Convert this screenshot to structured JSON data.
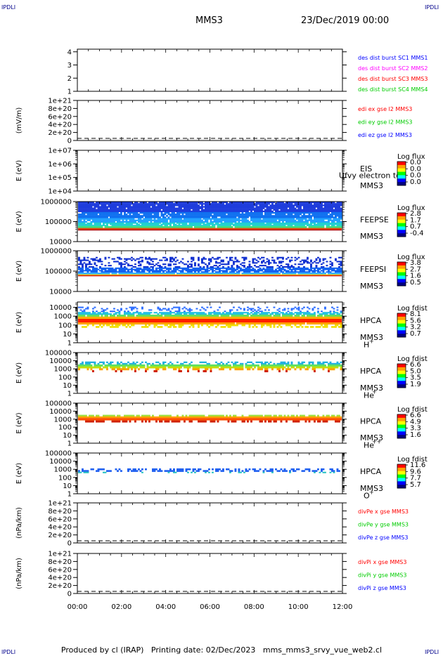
{
  "header": {
    "corner_label": "IPDLI",
    "title": "MMS3",
    "date": "23/Dec/2019 00:00"
  },
  "footer": {
    "text": "Produced by cl (IRAP)   Printing date: 02/Dec/2023   mms_mms3_srvy_vue_web2.cl"
  },
  "colors": {
    "blue": "#0000ff",
    "magenta": "#ff00ff",
    "red": "#ff0000",
    "green": "#00cc00",
    "darkblue": "#00008b"
  },
  "x_axis": {
    "range_hours": [
      0,
      12
    ],
    "ticks": [
      "00:00",
      "02:00",
      "04:00",
      "06:00",
      "08:00",
      "10:00",
      "12:00"
    ]
  },
  "chart_data": [
    {
      "type": "line",
      "ylabel": "",
      "yticks": [
        "1",
        "2",
        "3",
        "4"
      ],
      "ylim": [
        1,
        4.2
      ],
      "legend": [
        {
          "label": "des dist burst SC1 MMS1",
          "color": "#0000ff"
        },
        {
          "label": "des dist burst SC2 MMS2",
          "color": "#ff00ff"
        },
        {
          "label": "des dist burst SC3 MMS3",
          "color": "#ff0000"
        },
        {
          "label": "des dist burst SC4 MMS4",
          "color": "#00cc00"
        }
      ],
      "series": []
    },
    {
      "type": "line",
      "ylabel": "(mV/m)",
      "yticks": [
        "0",
        "2e+20",
        "4e+20",
        "6e+20",
        "8e+20",
        "1e+21"
      ],
      "ylim": [
        0,
        1e+21
      ],
      "zero_line": true,
      "legend": [
        {
          "label": "edi ex gse l2 MMS3",
          "color": "#ff0000"
        },
        {
          "label": "edi ey gse l2 MMS3",
          "color": "#00cc00"
        },
        {
          "label": "edi ez gse l2 MMS3",
          "color": "#0000ff"
        }
      ],
      "series": []
    },
    {
      "type": "heatmap",
      "ylabel": "E (eV)",
      "yticks": [
        "1e+04",
        "1e+05",
        "1e+06",
        "1e+07"
      ],
      "log": true,
      "ylim": [
        10000,
        10000000
      ],
      "instrument": [
        "EIS",
        "MMS3"
      ],
      "note": "Ufvy electron to",
      "colorbar": {
        "title": "Log flux",
        "ticks": [
          "0.0",
          "0.0",
          "0.0",
          "0.0"
        ]
      },
      "bands": []
    },
    {
      "type": "heatmap",
      "ylabel": "E (eV)",
      "yticks": [
        "10000",
        "100000",
        "1000000"
      ],
      "log": true,
      "ylim": [
        10000,
        1000000
      ],
      "instrument": [
        "FEEPSE",
        "MMS3"
      ],
      "colorbar": {
        "title": "Log flux",
        "ticks": [
          "2.8",
          "1.7",
          "0.7",
          "-0.4"
        ]
      },
      "bands": [
        {
          "e_lo": 300000,
          "e_hi": 1000000,
          "color": "#1e3cdc",
          "speckle": 0.05
        },
        {
          "e_lo": 150000,
          "e_hi": 300000,
          "color": "#1070f0",
          "speckle": 0.08
        },
        {
          "e_lo": 90000,
          "e_hi": 150000,
          "color": "#20a0ff",
          "speckle": 0.1
        },
        {
          "e_lo": 60000,
          "e_hi": 90000,
          "color": "#20d0d0",
          "speckle": 0.1
        },
        {
          "e_lo": 48000,
          "e_hi": 60000,
          "color": "#40e080",
          "speckle": 0.05
        },
        {
          "e_lo": 40000,
          "e_hi": 48000,
          "color": "#e04000",
          "speckle": 0
        },
        {
          "e_lo": 36000,
          "e_hi": 40000,
          "color": "#b00000",
          "speckle": 0
        }
      ]
    },
    {
      "type": "heatmap",
      "ylabel": "E (eV)",
      "yticks": [
        "10000",
        "100000",
        "1000000"
      ],
      "log": true,
      "ylim": [
        10000,
        1000000
      ],
      "instrument": [
        "FEEPSI",
        "MMS3"
      ],
      "colorbar": {
        "title": "Log flux",
        "ticks": [
          "3.8",
          "2.7",
          "1.6",
          "0.5"
        ]
      },
      "bands": [
        {
          "e_lo": 150000,
          "e_hi": 500000,
          "color": "#1030d0",
          "speckle": 0.65
        },
        {
          "e_lo": 85000,
          "e_hi": 150000,
          "color": "#1060f0",
          "speckle": 0.2
        },
        {
          "e_lo": 70000,
          "e_hi": 85000,
          "color": "#30b0ff",
          "speckle": 0.05
        },
        {
          "e_lo": 63000,
          "e_hi": 70000,
          "color": "#f0d000",
          "speckle": 0
        },
        {
          "e_lo": 56000,
          "e_hi": 63000,
          "color": "#d01000",
          "speckle": 0
        }
      ]
    },
    {
      "type": "heatmap",
      "ylabel": "E (eV)",
      "yticks": [
        "1",
        "10",
        "100",
        "1000",
        "10000"
      ],
      "log": true,
      "ylim": [
        1,
        40000
      ],
      "instrument": [
        "HPCA",
        "MMS3",
        "H",
        "+"
      ],
      "colorbar": {
        "title": "Log fdist",
        "ticks": [
          "8.1",
          "5.6",
          "3.2",
          "0.7"
        ]
      },
      "bands": [
        {
          "e_lo": 3000,
          "e_hi": 12000,
          "color": "#3070ff",
          "speckle": 0.75
        },
        {
          "e_lo": 1500,
          "e_hi": 3000,
          "color": "#20c0e0",
          "speckle": 0.2
        },
        {
          "e_lo": 900,
          "e_hi": 1500,
          "color": "#60e060",
          "speckle": 0.1
        },
        {
          "e_lo": 500,
          "e_hi": 900,
          "color": "#ffb000",
          "speckle": 0
        },
        {
          "e_lo": 200,
          "e_hi": 500,
          "color": "#ff2000",
          "speckle": 0
        },
        {
          "e_lo": 120,
          "e_hi": 200,
          "color": "#ffa000",
          "speckle": 0.05
        },
        {
          "e_lo": 50,
          "e_hi": 120,
          "color": "#f0e000",
          "speckle": 0.55
        }
      ]
    },
    {
      "type": "heatmap",
      "ylabel": "E (eV)",
      "yticks": [
        "1",
        "10",
        "100",
        "1000",
        "10000",
        "100000"
      ],
      "log": true,
      "ylim": [
        1,
        100000
      ],
      "instrument": [
        "HPCA",
        "MMS3",
        "He",
        "+"
      ],
      "colorbar": {
        "title": "Log fdist",
        "ticks": [
          "6.6",
          "5.0",
          "3.5",
          "1.9"
        ]
      },
      "bands": [
        {
          "e_lo": 3500,
          "e_hi": 8000,
          "color": "#20b0e0",
          "speckle": 0.55
        },
        {
          "e_lo": 2000,
          "e_hi": 3500,
          "color": "#60e060",
          "speckle": 0.05
        },
        {
          "e_lo": 1200,
          "e_hi": 2000,
          "color": "#c0e000",
          "speckle": 0.1
        },
        {
          "e_lo": 700,
          "e_hi": 1200,
          "color": "#ffa000",
          "speckle": 0.4
        },
        {
          "e_lo": 400,
          "e_hi": 700,
          "color": "#d02000",
          "speckle": 0.85
        }
      ]
    },
    {
      "type": "heatmap",
      "ylabel": "E (eV)",
      "yticks": [
        "1",
        "10",
        "100",
        "1000",
        "10000",
        "100000"
      ],
      "log": true,
      "ylim": [
        1,
        100000
      ],
      "instrument": [
        "HPCA",
        "MMS3",
        "He",
        "++"
      ],
      "colorbar": {
        "title": "Log fdist",
        "ticks": [
          "6.6",
          "4.9",
          "3.3",
          "1.6"
        ]
      },
      "bands": [
        {
          "e_lo": 2200,
          "e_hi": 3500,
          "color": "#a0e040",
          "speckle": 0.3
        },
        {
          "e_lo": 1400,
          "e_hi": 2200,
          "color": "#ffa000",
          "speckle": 0
        },
        {
          "e_lo": 700,
          "e_hi": 1400,
          "color": "#ff5000",
          "speckle": 0
        },
        {
          "e_lo": 400,
          "e_hi": 700,
          "color": "#d02000",
          "speckle": 0.5
        }
      ]
    },
    {
      "type": "heatmap",
      "ylabel": "E (eV)",
      "yticks": [
        "1",
        "10",
        "100",
        "1000",
        "10000",
        "100000"
      ],
      "log": true,
      "ylim": [
        1,
        100000
      ],
      "instrument": [
        "HPCA",
        "MMS3",
        "O",
        "+"
      ],
      "colorbar": {
        "title": "Log fdist",
        "ticks": [
          "11.6",
          "9.6",
          "7.7",
          "5.7"
        ]
      },
      "bands": [
        {
          "e_lo": 500,
          "e_hi": 1300,
          "color": "#2060f0",
          "speckle": 0.55
        },
        {
          "e_lo": 350,
          "e_hi": 500,
          "color": "#20c0c0",
          "speckle": 0.85
        }
      ]
    },
    {
      "type": "line",
      "ylabel": "(nPa/km)",
      "yticks": [
        "0",
        "2e+20",
        "4e+20",
        "6e+20",
        "8e+20",
        "1e+21"
      ],
      "ylim": [
        0,
        1e+21
      ],
      "zero_line": true,
      "legend": [
        {
          "label": "divPe x gse MMS3",
          "color": "#ff0000"
        },
        {
          "label": "divPe y gse MMS3",
          "color": "#00cc00"
        },
        {
          "label": "divPe z gse MMS3",
          "color": "#0000ff"
        }
      ],
      "series": []
    },
    {
      "type": "line",
      "ylabel": "(nPa/km)",
      "yticks": [
        "0",
        "2e+20",
        "4e+20",
        "6e+20",
        "8e+20",
        "1e+21"
      ],
      "ylim": [
        0,
        1e+21
      ],
      "zero_line": true,
      "legend": [
        {
          "label": "divPi x gse MMS3",
          "color": "#ff0000"
        },
        {
          "label": "divPi y gse MMS3",
          "color": "#00cc00"
        },
        {
          "label": "divPi z gse MMS3",
          "color": "#0000ff"
        }
      ],
      "series": []
    }
  ]
}
